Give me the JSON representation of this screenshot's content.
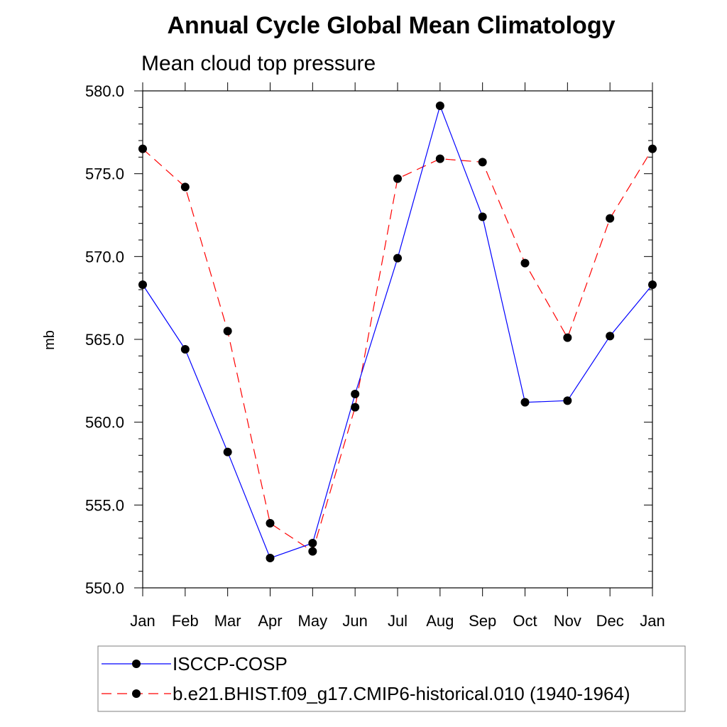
{
  "chart_data": {
    "type": "line",
    "title": "Annual Cycle Global Mean Climatology",
    "subtitle": "Mean cloud top pressure",
    "ylabel": "mb",
    "xlabel": "",
    "ylim": [
      550,
      580
    ],
    "ytick_values": [
      550,
      555,
      560,
      565,
      570,
      575,
      580
    ],
    "ytick_labels": [
      "550.0",
      "555.0",
      "560.0",
      "565.0",
      "570.0",
      "575.0",
      "580.0"
    ],
    "categories": [
      "Jan",
      "Feb",
      "Mar",
      "Apr",
      "May",
      "Jun",
      "Jul",
      "Aug",
      "Sep",
      "Oct",
      "Nov",
      "Dec",
      "Jan"
    ],
    "grid": false,
    "legend_position": "bottom",
    "series": [
      {
        "name": "ISCCP-COSP",
        "color": "#0000ff",
        "line_style": "solid",
        "marker": "filled-circle",
        "values": [
          568.3,
          564.4,
          558.2,
          551.8,
          552.7,
          561.7,
          569.9,
          579.1,
          572.4,
          561.2,
          561.3,
          565.2,
          568.3
        ]
      },
      {
        "name": "b.e21.BHIST.f09_g17.CMIP6-historical.010 (1940-1964)",
        "color": "#ff0000",
        "line_style": "dashed",
        "marker": "filled-circle",
        "values": [
          576.5,
          574.2,
          565.5,
          553.9,
          552.2,
          560.9,
          574.7,
          575.9,
          575.7,
          569.6,
          565.1,
          572.3,
          576.5
        ]
      }
    ]
  }
}
